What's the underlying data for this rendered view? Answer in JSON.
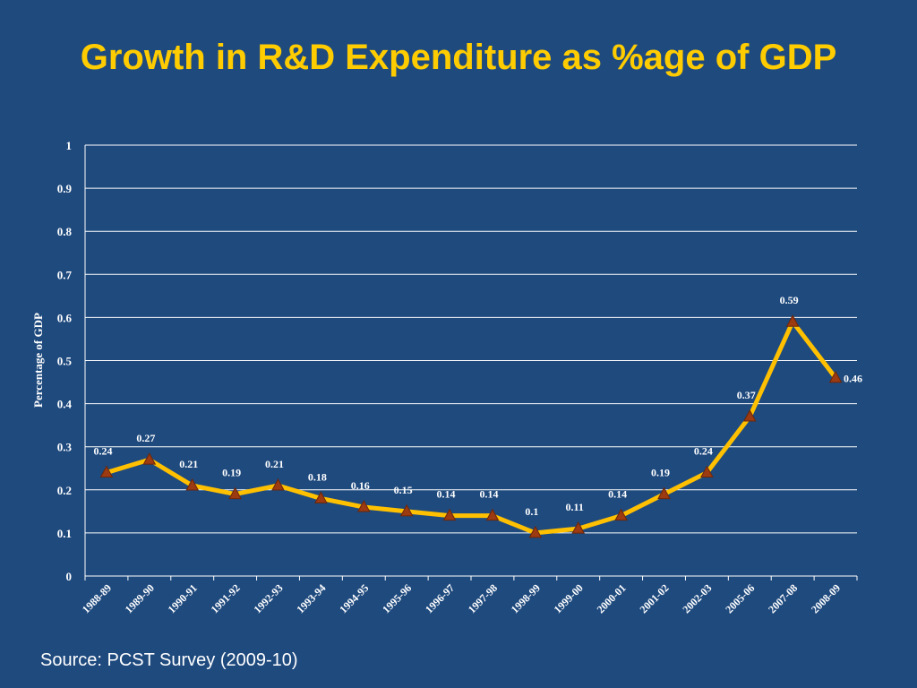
{
  "slide": {
    "title": "Growth in R&D Expenditure as %age of GDP",
    "source": "Source: PCST Survey (2009-10)"
  },
  "colors": {
    "background": "#1f4a7e",
    "title": "#ffcc00",
    "line": "#ffc000",
    "marker": "#9c3a12",
    "text": "#ffffff",
    "grid": "#ffffff"
  },
  "chart_data": {
    "type": "line",
    "title": "",
    "xlabel": "",
    "ylabel": "Percentage of GDP",
    "ylim": [
      0,
      1
    ],
    "yticks": [
      "0",
      "0.1",
      "0.2",
      "0.3",
      "0.4",
      "0.5",
      "0.6",
      "0.7",
      "0.8",
      "0.9",
      "1"
    ],
    "grid": true,
    "legend": "none",
    "categories": [
      "1988-89",
      "1989-90",
      "1990-91",
      "1991-92",
      "1992-93",
      "1993-94",
      "1994-95",
      "1995-96",
      "1996-97",
      "1997-98",
      "1998-99",
      "1999-00",
      "2000-01",
      "2001-02",
      "2002-03",
      "2005-06",
      "2007-08",
      "2008-09"
    ],
    "series": [
      {
        "values": [
          0.24,
          0.27,
          0.21,
          0.19,
          0.21,
          0.18,
          0.16,
          0.15,
          0.14,
          0.14,
          0.1,
          0.11,
          0.14,
          0.19,
          0.24,
          0.37,
          0.59,
          0.46
        ],
        "labels": [
          "0.24",
          "0.27",
          "0.21",
          "0.19",
          "0.21",
          "0.18",
          "0.16",
          "0.15",
          "0.14",
          "0.14",
          "0.1",
          "0.11",
          "0.14",
          "0.19",
          "0.24",
          "0.37",
          "0.59",
          "0.46"
        ]
      }
    ]
  }
}
